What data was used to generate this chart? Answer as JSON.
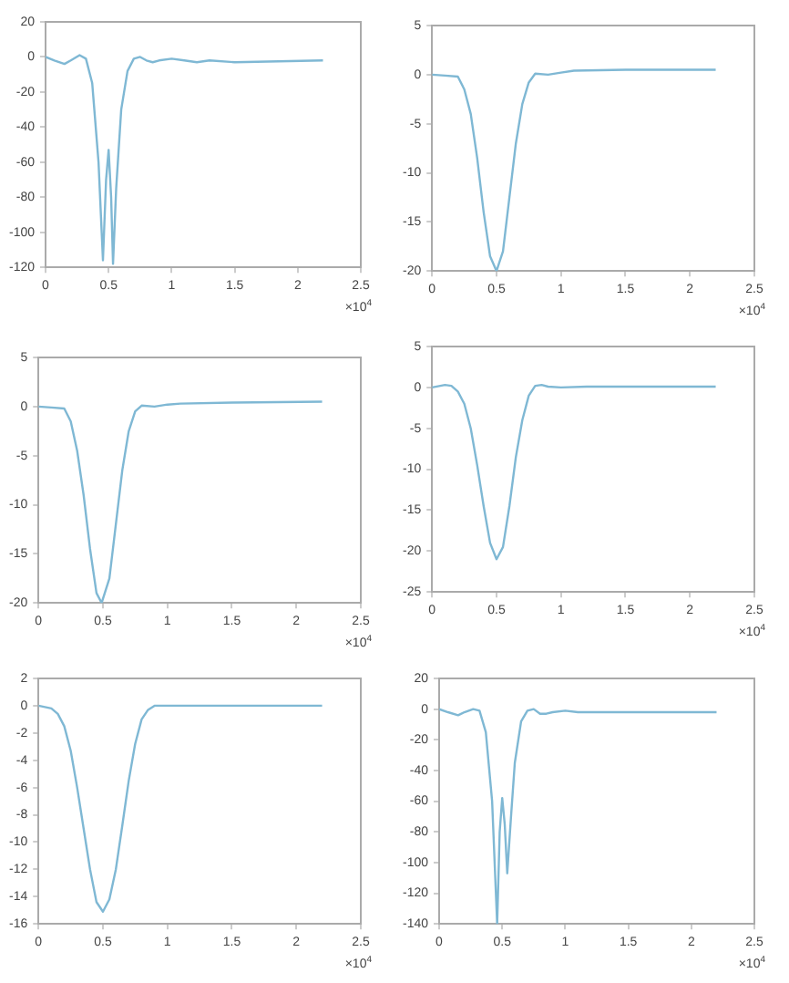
{
  "chart_data": [
    {
      "type": "line",
      "x": [
        0,
        0.07,
        0.15,
        0.2,
        0.27,
        0.32,
        0.37,
        0.42,
        0.455,
        0.48,
        0.5,
        0.52,
        0.535,
        0.56,
        0.6,
        0.65,
        0.7,
        0.75,
        0.8,
        0.85,
        0.9,
        1.0,
        1.1,
        1.2,
        1.3,
        1.5,
        2.2
      ],
      "series": [
        {
          "color": "#7fb8d4",
          "values": [
            0,
            -2,
            -4,
            -2,
            1,
            -1,
            -15,
            -60,
            -116,
            -70,
            -53,
            -80,
            -118,
            -75,
            -30,
            -8,
            -1,
            0,
            -2,
            -3,
            -2,
            -1,
            -2,
            -3,
            -2,
            -3,
            -2
          ]
        }
      ],
      "xlim": [
        0,
        2.5
      ],
      "xticks": [
        0,
        0.5,
        1,
        1.5,
        2,
        2.5
      ],
      "ylim": [
        -120,
        20
      ],
      "yticks": [
        -120,
        -100,
        -80,
        -60,
        -40,
        -20,
        0,
        20
      ],
      "grid": false,
      "legend": false,
      "annotations": [
        "×10$^{4}$"
      ]
    },
    {
      "type": "line",
      "x": [
        0,
        0.1,
        0.2,
        0.25,
        0.3,
        0.35,
        0.4,
        0.45,
        0.5,
        0.55,
        0.6,
        0.65,
        0.7,
        0.75,
        0.8,
        0.9,
        1.0,
        1.1,
        1.5,
        2.2
      ],
      "series": [
        {
          "color": "#7fb8d4",
          "values": [
            0,
            -0.1,
            -0.2,
            -1.5,
            -4,
            -8.5,
            -14,
            -18.5,
            -20,
            -18,
            -12.5,
            -7,
            -3,
            -0.8,
            0.1,
            0,
            0.2,
            0.4,
            0.5,
            0.5
          ]
        }
      ],
      "xlim": [
        0,
        2.5
      ],
      "xticks": [
        0,
        0.5,
        1,
        1.5,
        2,
        2.5
      ],
      "ylim": [
        -20,
        5
      ],
      "yticks": [
        -20,
        -15,
        -10,
        -5,
        0,
        5
      ],
      "grid": false,
      "legend": false,
      "annotations": [
        "×10$^{4}$"
      ]
    },
    {
      "type": "line",
      "x": [
        0,
        0.1,
        0.2,
        0.25,
        0.3,
        0.35,
        0.4,
        0.45,
        0.49,
        0.55,
        0.6,
        0.65,
        0.7,
        0.75,
        0.8,
        0.9,
        1.0,
        1.1,
        1.5,
        2.2
      ],
      "series": [
        {
          "color": "#7fb8d4",
          "values": [
            0,
            -0.1,
            -0.2,
            -1.5,
            -4.5,
            -9,
            -14.5,
            -19,
            -20,
            -17.5,
            -12,
            -6.5,
            -2.5,
            -0.5,
            0.1,
            0,
            0.2,
            0.3,
            0.4,
            0.5
          ]
        }
      ],
      "xlim": [
        0,
        2.5
      ],
      "xticks": [
        0,
        0.5,
        1,
        1.5,
        2,
        2.5
      ],
      "ylim": [
        -20,
        5
      ],
      "yticks": [
        -20,
        -15,
        -10,
        -5,
        0,
        5
      ],
      "grid": false,
      "legend": false,
      "annotations": [
        "×10$^{4}$"
      ]
    },
    {
      "type": "line",
      "x": [
        0,
        0.1,
        0.15,
        0.2,
        0.25,
        0.3,
        0.35,
        0.4,
        0.45,
        0.5,
        0.55,
        0.6,
        0.65,
        0.7,
        0.75,
        0.8,
        0.85,
        0.9,
        1.0,
        1.2,
        2.2
      ],
      "series": [
        {
          "color": "#7fb8d4",
          "values": [
            0,
            0.3,
            0.2,
            -0.5,
            -2,
            -5,
            -9.5,
            -14.5,
            -19,
            -21,
            -19.5,
            -14.5,
            -8.5,
            -4,
            -1,
            0.2,
            0.3,
            0.1,
            0,
            0.1,
            0.1
          ]
        }
      ],
      "xlim": [
        0,
        2.5
      ],
      "xticks": [
        0,
        0.5,
        1,
        1.5,
        2,
        2.5
      ],
      "ylim": [
        -25,
        5
      ],
      "yticks": [
        -25,
        -20,
        -15,
        -10,
        -5,
        0,
        5
      ],
      "grid": false,
      "legend": false,
      "annotations": [
        "×10$^{4}$"
      ]
    },
    {
      "type": "line",
      "x": [
        0,
        0.1,
        0.15,
        0.2,
        0.25,
        0.3,
        0.35,
        0.4,
        0.45,
        0.5,
        0.55,
        0.6,
        0.65,
        0.7,
        0.75,
        0.8,
        0.85,
        0.9,
        1.0,
        2.2
      ],
      "series": [
        {
          "color": "#7fb8d4",
          "values": [
            0,
            -0.2,
            -0.6,
            -1.5,
            -3.3,
            -6,
            -9,
            -12,
            -14.4,
            -15.1,
            -14.2,
            -12,
            -8.8,
            -5.5,
            -2.8,
            -1,
            -0.3,
            0,
            0,
            0
          ]
        }
      ],
      "xlim": [
        0,
        2.5
      ],
      "xticks": [
        0,
        0.5,
        1,
        1.5,
        2,
        2.5
      ],
      "ylim": [
        -16,
        2
      ],
      "yticks": [
        -16,
        -14,
        -12,
        -10,
        -8,
        -6,
        -4,
        -2,
        0,
        2
      ],
      "grid": false,
      "legend": false,
      "annotations": [
        "×10$^{4}$"
      ]
    },
    {
      "type": "line",
      "x": [
        0,
        0.07,
        0.15,
        0.2,
        0.27,
        0.32,
        0.37,
        0.42,
        0.46,
        0.48,
        0.5,
        0.52,
        0.54,
        0.57,
        0.6,
        0.65,
        0.7,
        0.75,
        0.8,
        0.85,
        0.9,
        1.0,
        1.1,
        1.3,
        2.2
      ],
      "series": [
        {
          "color": "#7fb8d4",
          "values": [
            0,
            -2,
            -4,
            -2,
            0,
            -1,
            -15,
            -60,
            -140,
            -80,
            -58,
            -75,
            -107,
            -70,
            -35,
            -8,
            -1,
            0,
            -3,
            -3,
            -2,
            -1,
            -2,
            -2,
            -2
          ]
        }
      ],
      "xlim": [
        0,
        2.5
      ],
      "xticks": [
        0,
        0.5,
        1,
        1.5,
        2,
        2.5
      ],
      "ylim": [
        -140,
        20
      ],
      "yticks": [
        -140,
        -120,
        -100,
        -80,
        -60,
        -40,
        -20,
        0,
        20
      ],
      "grid": false,
      "legend": false,
      "annotations": [
        "×10$^{4}$"
      ]
    }
  ]
}
